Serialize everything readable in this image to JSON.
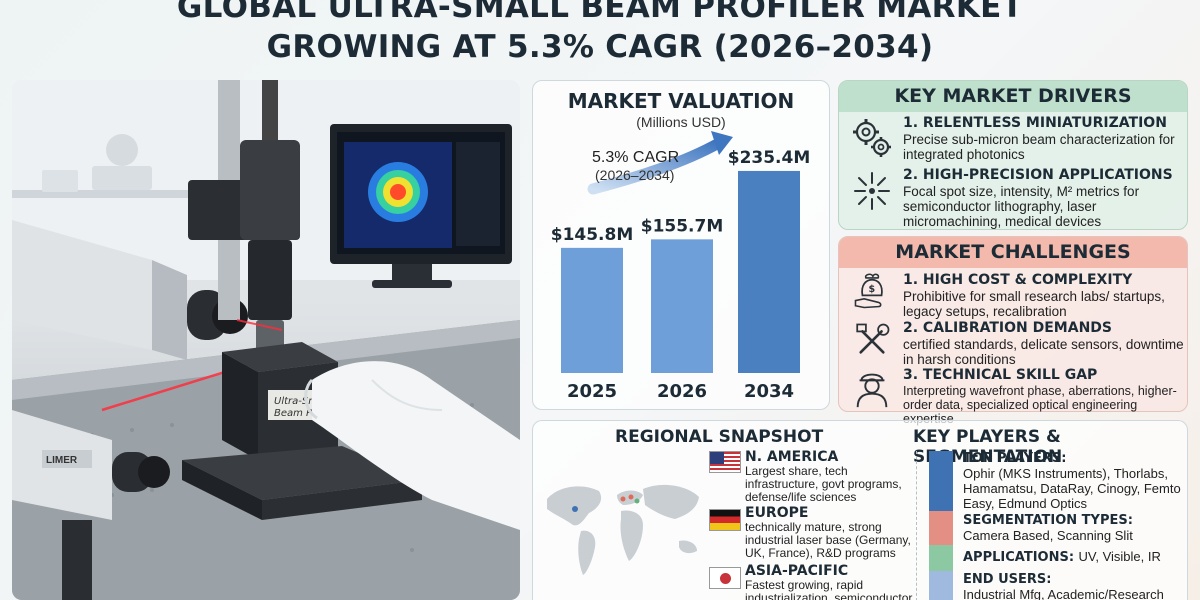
{
  "title": {
    "line1": "GLOBAL ULTRA-SMALL BEAM PROFILER MARKET",
    "line2": "GROWING AT 5.3% CAGR (2026–2034)"
  },
  "photo": {
    "device_label_1": "Ultra-Small",
    "device_label_2": "Beam Profiler",
    "brand": "LIMER"
  },
  "valuation": {
    "heading": "MARKET VALUATION",
    "unit": "(Millions USD)",
    "cagr": "5.3% CAGR",
    "cagr_period": "(2026–2034)"
  },
  "chart_data": {
    "type": "bar",
    "categories": [
      "2025",
      "2026",
      "2034"
    ],
    "values": [
      145.8,
      155.7,
      235.4
    ],
    "value_labels": [
      "$145.8M",
      "$155.7M",
      "$235.4M"
    ],
    "title": "MARKET VALUATION",
    "ylabel": "(Millions USD)",
    "colors": [
      "#6f9fd8",
      "#6f9fd8",
      "#4a7fc0"
    ]
  },
  "drivers": {
    "heading": "KEY MARKET DRIVERS",
    "items": [
      {
        "title": "1. RELENTLESS MINIATURIZATION",
        "desc": "Precise sub-micron beam characterization for integrated photonics",
        "icon": "gears-icon"
      },
      {
        "title": "2. HIGH-PRECISION APPLICATIONS",
        "desc": "Focal spot size, intensity, M² metrics for semiconductor lithography, laser micromachining, medical devices",
        "icon": "laser-burst-icon"
      }
    ]
  },
  "challenges": {
    "heading": "MARKET CHALLENGES",
    "items": [
      {
        "title": "1. HIGH COST & COMPLEXITY",
        "desc": "Prohibitive for small research labs/ startups, legacy setups, recalibration",
        "icon": "money-hand-icon"
      },
      {
        "title": "2. CALIBRATION DEMANDS",
        "desc": "certified standards, delicate sensors, downtime in harsh conditions",
        "icon": "tools-icon"
      },
      {
        "title": "3. TECHNICAL SKILL GAP",
        "desc": "Interpreting wavefront phase, aberrations, higher-order data, specialized optical engineering expertise",
        "icon": "engineer-icon"
      }
    ]
  },
  "regional": {
    "heading": "REGIONAL SNAPSHOT",
    "regions": [
      {
        "name": "N. AMERICA",
        "desc": "Largest share, tech infrastructure, govt programs, defense/life sciences",
        "flag": "us-flag"
      },
      {
        "name": "EUROPE",
        "desc": "technically mature, strong industrial laser base (Germany, UK, France), R&D programs",
        "flag": "germany-flag"
      },
      {
        "name": "ASIA-PACIFIC",
        "desc": "Fastest growing, rapid industrialization, semiconductor",
        "flag": "japan-flag"
      }
    ]
  },
  "players": {
    "heading": "KEY PLAYERS & SEGMENTATION",
    "segments": [
      {
        "title": "TOP PLAYERS:",
        "desc": "Ophir (MKS Instruments), Thorlabs, Hamamatsu, DataRay, Cinogy, Femto Easy, Edmund Optics",
        "color": "#3f72b3"
      },
      {
        "title": "SEGMENTATION TYPES:",
        "desc": "Camera Based, Scanning Slit",
        "color": "#e48f83"
      },
      {
        "title": "APPLICATIONS:",
        "desc": "UV, Visible, IR",
        "color": "#8cc9a3"
      },
      {
        "title": "END USERS:",
        "desc": "Industrial Mfg, Academic/Research",
        "color": "#9fb9df"
      }
    ]
  }
}
